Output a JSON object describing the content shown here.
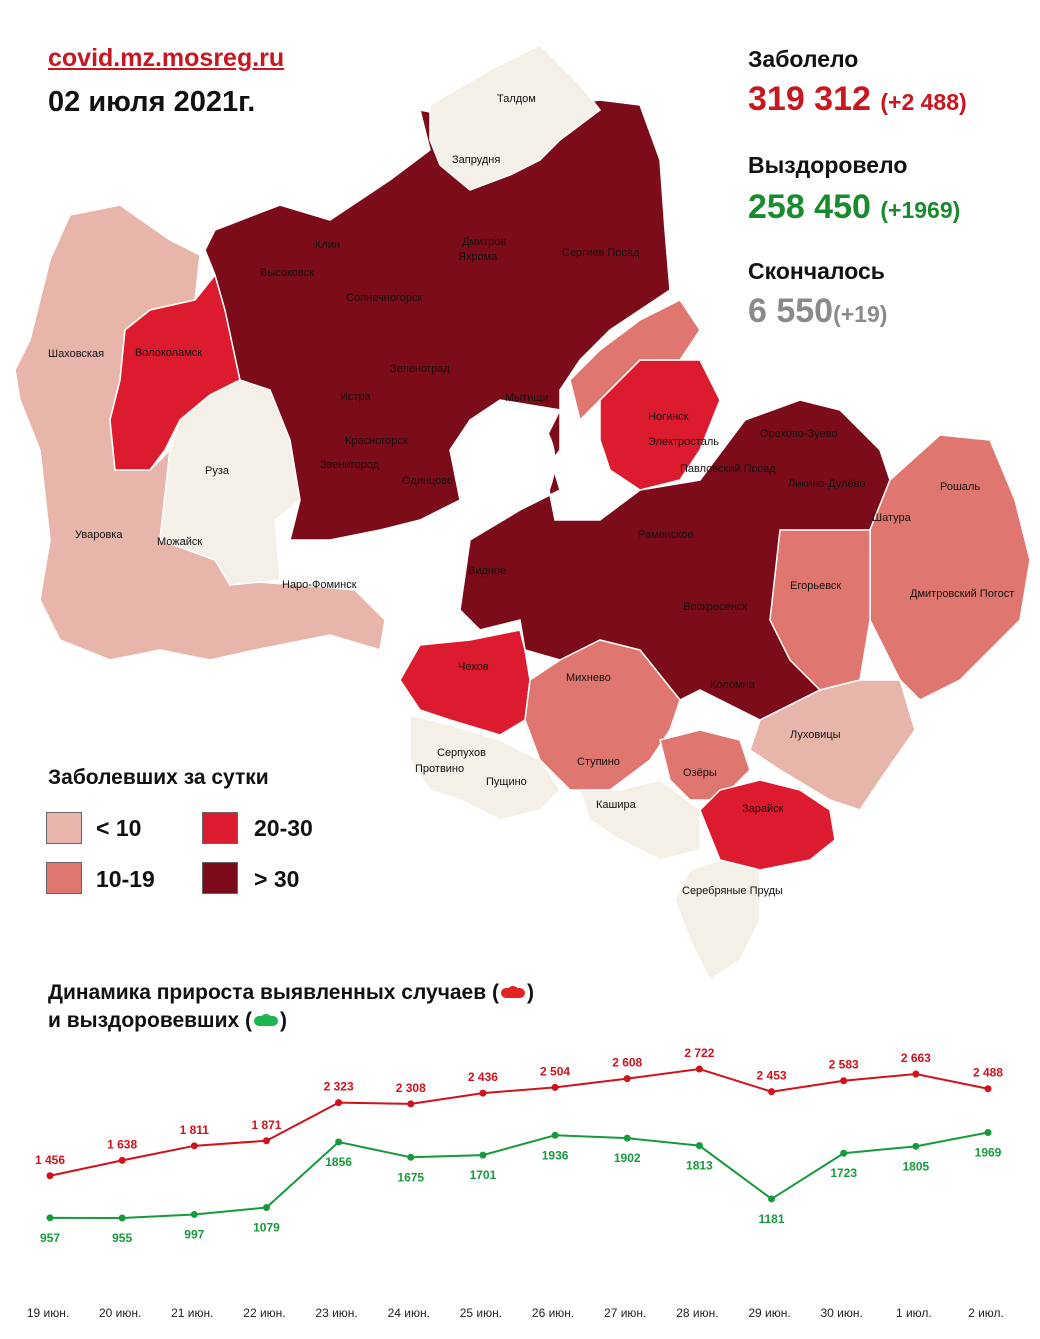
{
  "header": {
    "source": "covid.mz.mosreg.ru",
    "date": "02 июля 2021г."
  },
  "stats": {
    "sick": {
      "label": "Заболело",
      "value": "319 312",
      "delta": "(+2 488)",
      "color": "#c8171e"
    },
    "recovered": {
      "label": "Выздоровело",
      "value": "258 450",
      "delta": "(+1969)",
      "color": "#1a8a2e"
    },
    "died": {
      "label": "Скончалось",
      "value": "6 550",
      "delta": "(+19)",
      "color": "#8a8a8a"
    }
  },
  "map": {
    "districts": [
      "Талдом",
      "Запрудня",
      "Клин",
      "Дмитров",
      "Сергиев Посад",
      "Высоковск",
      "Яхрома",
      "Солнечногорск",
      "Шаховская",
      "Волоколамск",
      "Зеленоград",
      "Истра",
      "Мытищи",
      "Ногинск",
      "Красногорск",
      "Электросталь",
      "Орехово-Зуево",
      "Звенигород",
      "Павловский Посад",
      "Одинцово",
      "Руза",
      "Ликино-Дулёво",
      "Рошаль",
      "Уваровка",
      "Можайск",
      "Раменское",
      "Шатура",
      "Наро-Фоминск",
      "Видное",
      "Егорьевск",
      "Дмитровский Погост",
      "Воскресенск",
      "Чехов",
      "Михнево",
      "Коломна",
      "Серпухов",
      "Луховицы",
      "Пущино",
      "Ступино",
      "Озёры",
      "Кашира",
      "Зарайск",
      "Серебряные Пруды",
      "Протвино"
    ]
  },
  "legend": {
    "title": "Заболевших за сутки",
    "items": [
      {
        "label": "< 10",
        "color": "#e8b5ab"
      },
      {
        "label": "20-30",
        "color": "#dc1c2e"
      },
      {
        "label": "10-19",
        "color": "#e07670"
      },
      {
        "label": "> 30",
        "color": "#7c0c1a"
      }
    ]
  },
  "dynamics": {
    "title_line1": "Динамика прироста выявленных случаев (",
    "title_line2": "и выздоровевших (",
    "close_paren": ")"
  },
  "chart_data": {
    "type": "line",
    "categories": [
      "19 июн.",
      "20 июн.",
      "21 июн.",
      "22 июн.",
      "23 июн.",
      "24 июн.",
      "25 июн.",
      "26 июн.",
      "27 июн.",
      "28 июн.",
      "29 июн.",
      "30 июн.",
      "1 июл.",
      "2 июл."
    ],
    "series": [
      {
        "values": [
          1456,
          1638,
          1811,
          1871,
          2323,
          2308,
          2436,
          2504,
          2608,
          2722,
          2453,
          2583,
          2663,
          2488
        ],
        "labels": [
          "1 456",
          "1 638",
          "1 811",
          "1 871",
          "2 323",
          "2 308",
          "2 436",
          "2 504",
          "2 608",
          "2 722",
          "2 453",
          "2 583",
          "2 663",
          "2 488"
        ],
        "color": "#d0121b"
      },
      {
        "values": [
          957,
          955,
          997,
          1079,
          1856,
          1675,
          1701,
          1936,
          1902,
          1813,
          1181,
          1723,
          1805,
          1969
        ],
        "labels": [
          "957",
          "955",
          "997",
          "1079",
          "1856",
          "1675",
          "1701",
          "1936",
          "1902",
          "1813",
          "1181",
          "1723",
          "1805",
          "1969"
        ],
        "color": "#179a3c"
      }
    ],
    "grid": false,
    "legend": "none"
  }
}
